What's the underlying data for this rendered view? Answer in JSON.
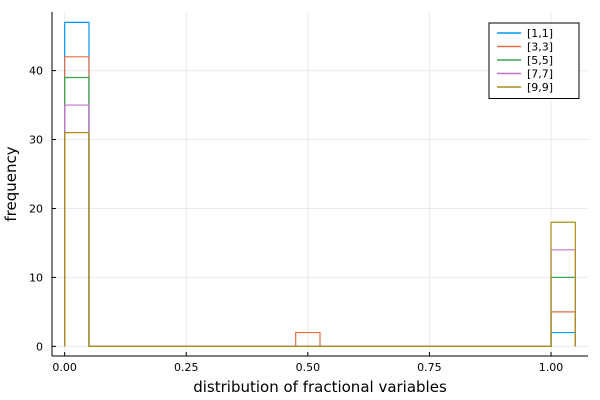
{
  "chart_data": {
    "type": "histogram",
    "xlabel": "distribution of fractional variables",
    "ylabel": "frequency",
    "xlim": [
      -0.026,
      1.076
    ],
    "ylim": [
      -1.4,
      48.5
    ],
    "xticks": [
      0.0,
      0.25,
      0.5,
      0.75,
      1.0
    ],
    "xtick_labels": [
      "0.00",
      "0.25",
      "0.50",
      "0.75",
      "1.00"
    ],
    "yticks": [
      0,
      10,
      20,
      30,
      40
    ],
    "ytick_labels": [
      "0",
      "10",
      "20",
      "30",
      "40"
    ],
    "grid": true,
    "legend_position": "top-right",
    "bin_edges": [
      0.0,
      0.05,
      0.475,
      0.525,
      1.0,
      1.05
    ],
    "series": [
      {
        "name": "[1,1]",
        "color": "#009AFA",
        "counts": [
          47,
          0,
          0,
          0,
          2
        ]
      },
      {
        "name": "[3,3]",
        "color": "#E36F47",
        "counts": [
          42,
          0,
          2,
          0,
          5
        ]
      },
      {
        "name": "[5,5]",
        "color": "#3EA44E",
        "counts": [
          39,
          0,
          0,
          0,
          10
        ]
      },
      {
        "name": "[7,7]",
        "color": "#C371D2",
        "counts": [
          35,
          0,
          0,
          0,
          14
        ]
      },
      {
        "name": "[9,9]",
        "color": "#AC8E18",
        "counts": [
          31,
          0,
          0,
          0,
          18
        ]
      }
    ]
  }
}
